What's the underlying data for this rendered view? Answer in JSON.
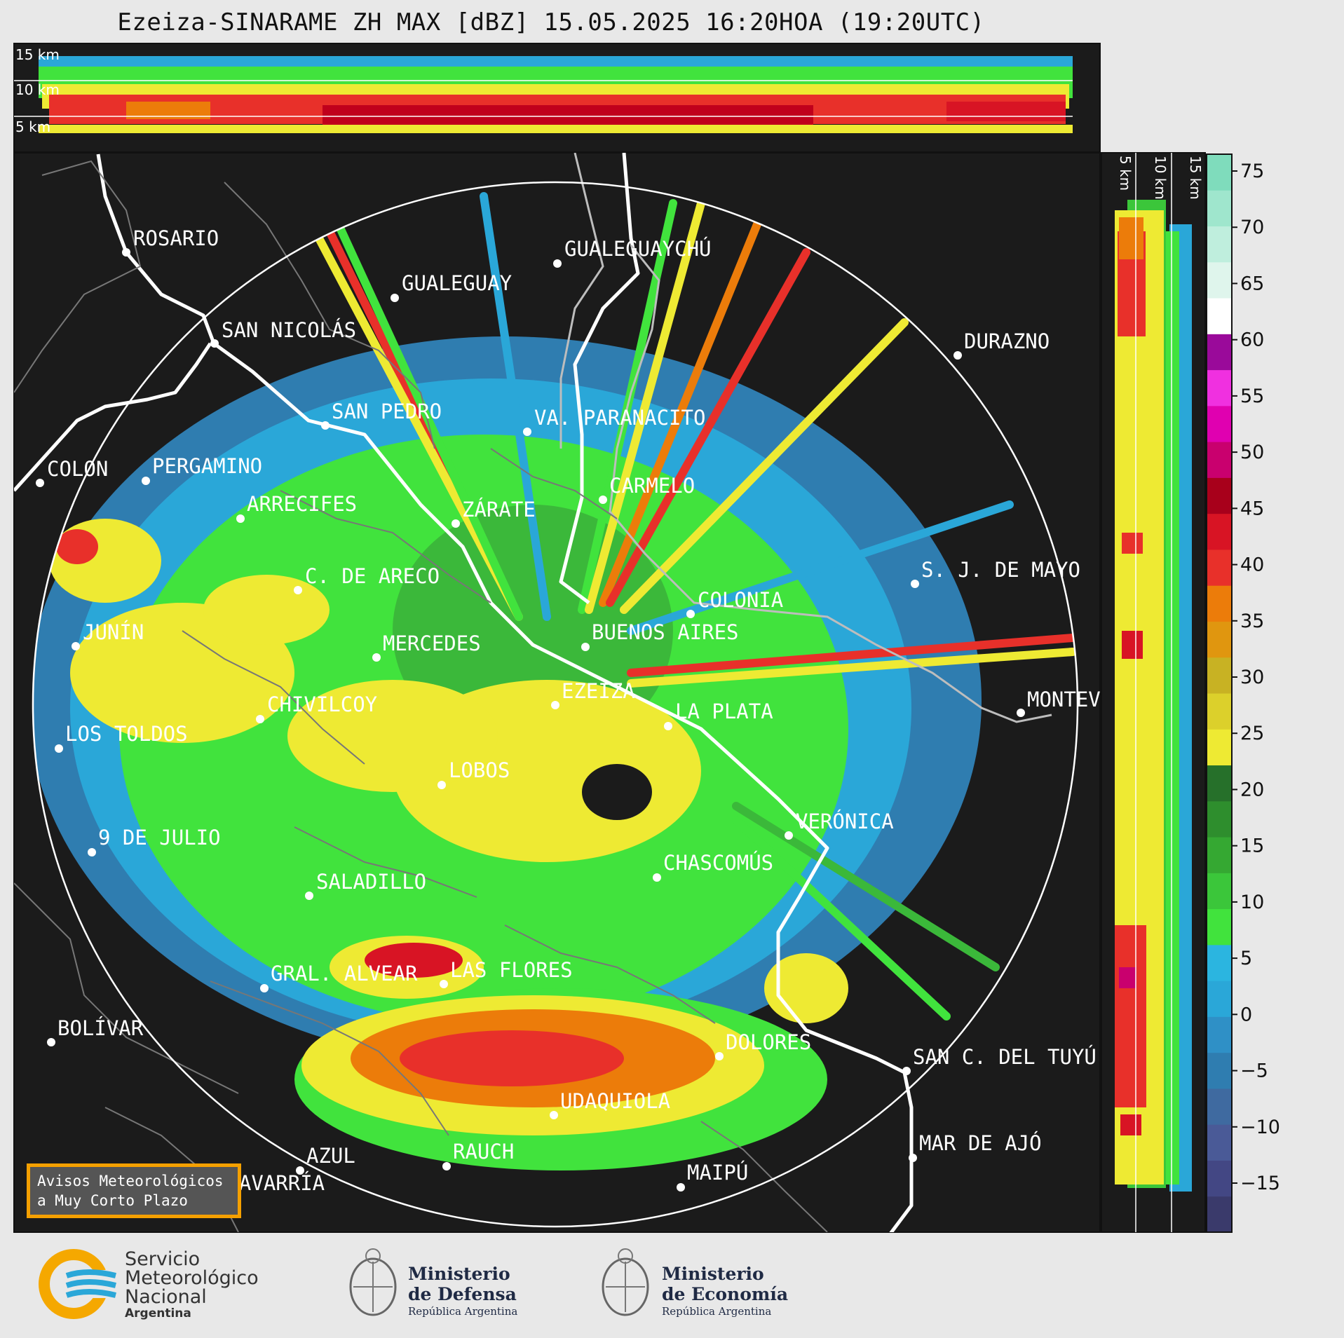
{
  "title": "Ezeiza-SINARAME ZH MAX [dBZ] 15.05.2025 16:20HOA (19:20UTC)",
  "top_panel": {
    "alt_labels": [
      "15 km",
      "10 km",
      "5 km"
    ]
  },
  "side_panel": {
    "alt_labels": [
      "5 km",
      "10 km",
      "15 km"
    ]
  },
  "colorbar": {
    "ticks": [
      "75",
      "70",
      "65",
      "60",
      "55",
      "50",
      "45",
      "40",
      "35",
      "30",
      "25",
      "20",
      "15",
      "10",
      "5",
      "0",
      "−5",
      "−10",
      "−15"
    ],
    "colors": [
      "#3a3a6b",
      "#434784",
      "#4a5a97",
      "#3f6aa0",
      "#2f7db0",
      "#2f90c6",
      "#2aa7d8",
      "#2bb5e0",
      "#41e33d",
      "#3bc63a",
      "#35a832",
      "#2e8e2d",
      "#26702a",
      "#eeea33",
      "#dcd02b",
      "#c8b223",
      "#e0960f",
      "#ec7c0a",
      "#e8302a",
      "#d81424",
      "#a8001b",
      "#c9006e",
      "#e000b0",
      "#f030e0",
      "#9a0a9a",
      "#ffffff",
      "#dff5ec",
      "#bfeedd",
      "#9fe6cd",
      "#7fdcbc"
    ]
  },
  "cities": [
    {
      "name": "ROSARIO"
    },
    {
      "name": "GUALEGUAYCHÚ"
    },
    {
      "name": "GUALEGUAY"
    },
    {
      "name": "SAN NICOLÁS"
    },
    {
      "name": "DURAZNO"
    },
    {
      "name": "SAN PEDRO"
    },
    {
      "name": "VA. PARANACITO"
    },
    {
      "name": "COLON"
    },
    {
      "name": "PERGAMINO"
    },
    {
      "name": "CARMELO"
    },
    {
      "name": "ARRECIFES"
    },
    {
      "name": "ZÁRATE"
    },
    {
      "name": "S. J. DE MAYO"
    },
    {
      "name": "C. DE ARECO"
    },
    {
      "name": "COLONIA"
    },
    {
      "name": "JUNÍN"
    },
    {
      "name": "BUENOS AIRES"
    },
    {
      "name": "MERCEDES"
    },
    {
      "name": "EZEIZA"
    },
    {
      "name": "MONTEVIDEO"
    },
    {
      "name": "CHIVILCOY"
    },
    {
      "name": "LA PLATA"
    },
    {
      "name": "LOS TOLDOS"
    },
    {
      "name": "LOBOS"
    },
    {
      "name": "VERÓNICA"
    },
    {
      "name": "9 DE JULIO"
    },
    {
      "name": "CHASCOMÚS"
    },
    {
      "name": "SALADILLO"
    },
    {
      "name": "GRAL. ALVEAR"
    },
    {
      "name": "LAS FLORES"
    },
    {
      "name": "BOLÍVAR"
    },
    {
      "name": "DOLORES"
    },
    {
      "name": "SAN C. DEL TUYÚ"
    },
    {
      "name": "UDAQUIOLA"
    },
    {
      "name": "RAUCH"
    },
    {
      "name": "MAR DE AJÓ"
    },
    {
      "name": "AZUL"
    },
    {
      "name": "OLAVARRÍA"
    },
    {
      "name": "MAIPÚ"
    }
  ],
  "avisos": {
    "line1": "Avisos Meteorológicos",
    "line2": "a Muy Corto Plazo"
  },
  "logos": {
    "smn": {
      "line1": "Servicio",
      "line2": "Meteorológico",
      "line3": "Nacional",
      "line4": "Argentina"
    },
    "defensa": {
      "line1": "Ministerio",
      "line2": "de Defensa",
      "line3": "República Argentina"
    },
    "economia": {
      "line1": "Ministerio",
      "line2": "de Economía",
      "line3": "República Argentina"
    }
  }
}
